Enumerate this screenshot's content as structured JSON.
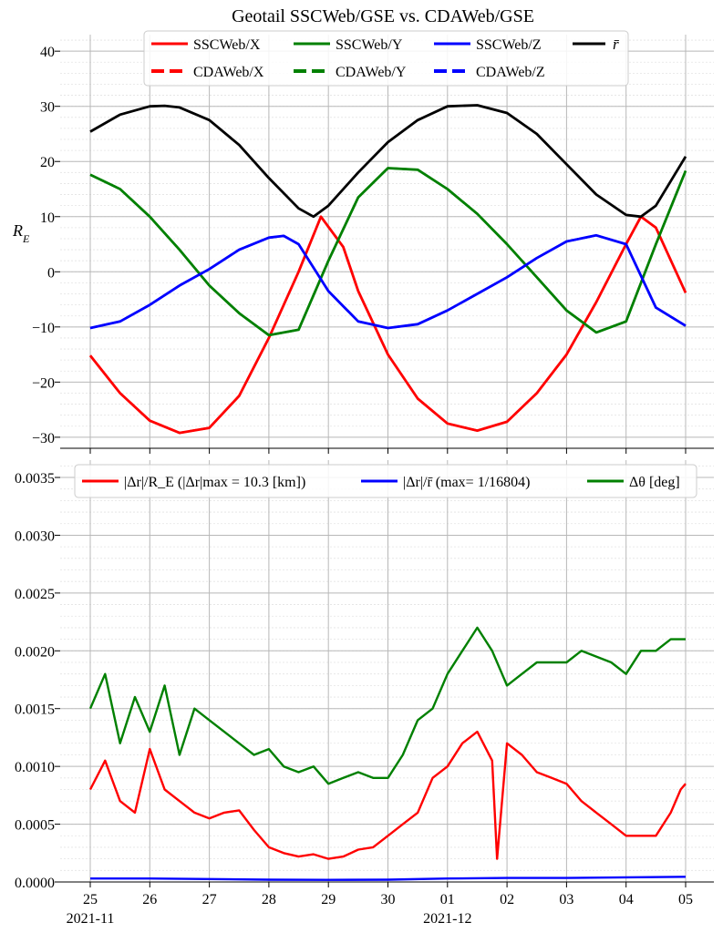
{
  "chart_data": [
    {
      "type": "line",
      "title": "Geotail SSCWeb/GSE vs. CDAWeb/GSE",
      "ylabel": "R_E",
      "ylim": [
        -32,
        43
      ],
      "yticks": [
        40,
        30,
        20,
        10,
        0,
        -10,
        -20,
        -30
      ],
      "ytick_labels": [
        "40",
        "30",
        "20",
        "10",
        "0",
        "−10",
        "−20",
        "−30"
      ],
      "grid": true,
      "legend_position": "top-center",
      "x_start": "2021-11-25",
      "x_end": "2021-12-05",
      "series": [
        {
          "name": "SSCWeb/X",
          "color": "#ff0000",
          "style": "solid",
          "x": [
            "2021-11-25",
            "2021-11-25T12:00",
            "2021-11-26",
            "2021-11-26T12:00",
            "2021-11-27",
            "2021-11-27T12:00",
            "2021-11-28",
            "2021-11-28T12:00",
            "2021-11-28T21:00",
            "2021-11-29T06:00",
            "2021-11-29T12:00",
            "2021-11-30",
            "2021-11-30T12:00",
            "2021-12-01",
            "2021-12-01T12:00",
            "2021-12-02",
            "2021-12-02T12:00",
            "2021-12-03",
            "2021-12-03T12:00",
            "2021-12-04",
            "2021-12-04T06:00",
            "2021-12-04T12:00",
            "2021-12-05"
          ],
          "values": [
            -15.2,
            -22,
            -27,
            -29.2,
            -28.3,
            -22.5,
            -12,
            0,
            10,
            4.5,
            -3.5,
            -15,
            -23,
            -27.5,
            -28.8,
            -27.2,
            -22,
            -15,
            -5.5,
            5,
            10,
            8,
            -3.8
          ]
        },
        {
          "name": "CDAWeb/X",
          "color": "#ff0000",
          "style": "dashed",
          "same_as": "SSCWeb/X"
        },
        {
          "name": "SSCWeb/Y",
          "color": "#008000",
          "style": "solid",
          "x": [
            "2021-11-25",
            "2021-11-25T12:00",
            "2021-11-26",
            "2021-11-26T12:00",
            "2021-11-27",
            "2021-11-27T12:00",
            "2021-11-28",
            "2021-11-28T12:00",
            "2021-11-29",
            "2021-11-29T12:00",
            "2021-11-30",
            "2021-11-30T12:00",
            "2021-12-01",
            "2021-12-01T12:00",
            "2021-12-02",
            "2021-12-02T12:00",
            "2021-12-03",
            "2021-12-03T12:00",
            "2021-12-04",
            "2021-12-04T12:00",
            "2021-12-05"
          ],
          "values": [
            17.6,
            15,
            10,
            4,
            -2.5,
            -7.5,
            -11.5,
            -10.5,
            2,
            13.5,
            18.8,
            18.5,
            15,
            10.5,
            5,
            -1,
            -7,
            -11,
            -9,
            5,
            18.3
          ]
        },
        {
          "name": "CDAWeb/Y",
          "color": "#008000",
          "style": "dashed",
          "same_as": "SSCWeb/Y"
        },
        {
          "name": "SSCWeb/Z",
          "color": "#0000ff",
          "style": "solid",
          "x": [
            "2021-11-25",
            "2021-11-25T12:00",
            "2021-11-26",
            "2021-11-26T12:00",
            "2021-11-27",
            "2021-11-27T12:00",
            "2021-11-28",
            "2021-11-28T06:00",
            "2021-11-28T12:00",
            "2021-11-29",
            "2021-11-29T12:00",
            "2021-11-30",
            "2021-11-30T12:00",
            "2021-12-01",
            "2021-12-01T12:00",
            "2021-12-02",
            "2021-12-02T12:00",
            "2021-12-03",
            "2021-12-03T12:00",
            "2021-12-04",
            "2021-12-04T12:00",
            "2021-12-05"
          ],
          "values": [
            -10.2,
            -9,
            -6,
            -2.5,
            0.5,
            4,
            6.2,
            6.5,
            5,
            -3.5,
            -9,
            -10.2,
            -9.5,
            -7,
            -4,
            -1,
            2.5,
            5.5,
            6.6,
            5,
            -6.5,
            -9.8
          ]
        },
        {
          "name": "CDAWeb/Z",
          "color": "#0000ff",
          "style": "dashed",
          "same_as": "SSCWeb/Z"
        },
        {
          "name": "r̄",
          "color": "#000000",
          "style": "solid",
          "x": [
            "2021-11-25",
            "2021-11-25T12:00",
            "2021-11-26",
            "2021-11-26T06:00",
            "2021-11-26T12:00",
            "2021-11-27",
            "2021-11-27T12:00",
            "2021-11-28",
            "2021-11-28T12:00",
            "2021-11-28T18:00",
            "2021-11-29",
            "2021-11-29T12:00",
            "2021-11-30",
            "2021-11-30T12:00",
            "2021-12-01",
            "2021-12-01T12:00",
            "2021-12-02",
            "2021-12-02T12:00",
            "2021-12-03",
            "2021-12-03T12:00",
            "2021-12-04",
            "2021-12-04T06:00",
            "2021-12-04T12:00",
            "2021-12-05"
          ],
          "values": [
            25.4,
            28.5,
            30,
            30.1,
            29.8,
            27.5,
            23,
            17,
            11.5,
            10,
            12,
            18,
            23.5,
            27.5,
            30,
            30.2,
            28.8,
            25,
            19.5,
            14,
            10.3,
            10,
            12,
            20.9
          ]
        }
      ]
    },
    {
      "type": "line",
      "title": "",
      "ylabel": "",
      "ylim": [
        0,
        0.00365
      ],
      "yticks": [
        0,
        0.0005,
        0.001,
        0.0015,
        0.002,
        0.0025,
        0.003,
        0.0035
      ],
      "ytick_labels": [
        "0.0000",
        "0.0005",
        "0.0010",
        "0.0015",
        "0.0020",
        "0.0025",
        "0.0030",
        "0.0035"
      ],
      "grid": true,
      "legend_position": "top-center",
      "x_start": "2021-11-25",
      "x_end": "2021-12-05",
      "xtick_labels": [
        "25",
        "26",
        "27",
        "28",
        "29",
        "30",
        "01",
        "02",
        "03",
        "04",
        "05"
      ],
      "xtick_sublabels": [
        {
          "at": "2021-11-25",
          "text": "2021-11"
        },
        {
          "at": "2021-12-01",
          "text": "2021-12"
        }
      ],
      "series": [
        {
          "name": "|Δr|/R_E (|Δr|max = 10.3 [km])",
          "color": "#ff0000",
          "x": [
            "2021-11-25",
            "2021-11-25T06:00",
            "2021-11-25T12:00",
            "2021-11-25T18:00",
            "2021-11-26",
            "2021-11-26T06:00",
            "2021-11-26T12:00",
            "2021-11-26T18:00",
            "2021-11-27",
            "2021-11-27T06:00",
            "2021-11-27T12:00",
            "2021-11-27T18:00",
            "2021-11-28",
            "2021-11-28T06:00",
            "2021-11-28T12:00",
            "2021-11-28T18:00",
            "2021-11-29",
            "2021-11-29T06:00",
            "2021-11-29T12:00",
            "2021-11-29T18:00",
            "2021-11-30",
            "2021-11-30T06:00",
            "2021-11-30T12:00",
            "2021-11-30T18:00",
            "2021-12-01",
            "2021-12-01T06:00",
            "2021-12-01T12:00",
            "2021-12-01T18:00",
            "2021-12-01T20:00",
            "2021-12-02",
            "2021-12-02T06:00",
            "2021-12-02T12:00",
            "2021-12-02T18:00",
            "2021-12-03",
            "2021-12-03T06:00",
            "2021-12-03T12:00",
            "2021-12-03T18:00",
            "2021-12-04",
            "2021-12-04T06:00",
            "2021-12-04T12:00",
            "2021-12-04T18:00",
            "2021-12-04T22:00",
            "2021-12-05"
          ],
          "values": [
            0.0008,
            0.00105,
            0.0007,
            0.0006,
            0.00115,
            0.0008,
            0.0007,
            0.0006,
            0.00055,
            0.0006,
            0.00062,
            0.00045,
            0.0003,
            0.00025,
            0.00022,
            0.00024,
            0.0002,
            0.00022,
            0.00028,
            0.0003,
            0.0004,
            0.0005,
            0.0006,
            0.0009,
            0.001,
            0.0012,
            0.0013,
            0.00105,
            0.0002,
            0.0012,
            0.0011,
            0.00095,
            0.0009,
            0.00085,
            0.0007,
            0.0006,
            0.0005,
            0.0004,
            0.0004,
            0.0004,
            0.0006,
            0.0008,
            0.00085
          ]
        },
        {
          "name": "|Δr|/r̄ (max= 1/16804)",
          "color": "#0000ff",
          "x": [
            "2021-11-25",
            "2021-11-26",
            "2021-11-27",
            "2021-11-28",
            "2021-11-29",
            "2021-11-30",
            "2021-12-01",
            "2021-12-02",
            "2021-12-03",
            "2021-12-04",
            "2021-12-05"
          ],
          "values": [
            3e-05,
            3e-05,
            2.5e-05,
            2e-05,
            1.8e-05,
            2e-05,
            3e-05,
            3.5e-05,
            3.5e-05,
            4e-05,
            4.5e-05
          ]
        },
        {
          "name": "Δθ [deg]",
          "color": "#008000",
          "x": [
            "2021-11-25",
            "2021-11-25T06:00",
            "2021-11-25T12:00",
            "2021-11-25T18:00",
            "2021-11-26",
            "2021-11-26T06:00",
            "2021-11-26T12:00",
            "2021-11-26T18:00",
            "2021-11-27",
            "2021-11-27T06:00",
            "2021-11-27T12:00",
            "2021-11-27T18:00",
            "2021-11-28",
            "2021-11-28T06:00",
            "2021-11-28T12:00",
            "2021-11-28T18:00",
            "2021-11-29",
            "2021-11-29T06:00",
            "2021-11-29T12:00",
            "2021-11-29T18:00",
            "2021-11-30",
            "2021-11-30T06:00",
            "2021-11-30T12:00",
            "2021-11-30T18:00",
            "2021-12-01",
            "2021-12-01T06:00",
            "2021-12-01T12:00",
            "2021-12-01T18:00",
            "2021-12-02",
            "2021-12-02T06:00",
            "2021-12-02T12:00",
            "2021-12-02T18:00",
            "2021-12-03",
            "2021-12-03T06:00",
            "2021-12-03T12:00",
            "2021-12-03T18:00",
            "2021-12-04",
            "2021-12-04T06:00",
            "2021-12-04T12:00",
            "2021-12-04T18:00",
            "2021-12-05"
          ],
          "values": [
            0.0015,
            0.0018,
            0.0012,
            0.0016,
            0.0013,
            0.0017,
            0.0011,
            0.0015,
            0.0014,
            0.0013,
            0.0012,
            0.0011,
            0.00115,
            0.001,
            0.00095,
            0.001,
            0.00085,
            0.0009,
            0.00095,
            0.0009,
            0.0009,
            0.0011,
            0.0014,
            0.0015,
            0.0018,
            0.002,
            0.0022,
            0.002,
            0.0017,
            0.0018,
            0.0019,
            0.0019,
            0.0019,
            0.002,
            0.00195,
            0.0019,
            0.0018,
            0.002,
            0.002,
            0.0021,
            0.0021
          ]
        }
      ]
    }
  ]
}
